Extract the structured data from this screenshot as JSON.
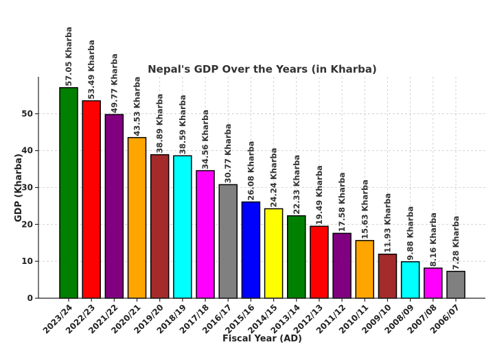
{
  "chart_data": {
    "type": "bar",
    "title": "Nepal's GDP Over the Years (in Kharba)",
    "xlabel": "Fiscal Year (AD)",
    "ylabel": "GDP (Kharba)",
    "ylim": [
      0,
      60
    ],
    "yticks": [
      0,
      10,
      20,
      30,
      40,
      50
    ],
    "grid": true,
    "categories": [
      "2023/24",
      "2022/23",
      "2021/22",
      "2020/21",
      "2019/20",
      "2018/19",
      "2017/18",
      "2016/17",
      "2015/16",
      "2014/15",
      "2013/14",
      "2012/13",
      "2011/12",
      "2010/11",
      "2009/10",
      "2008/09",
      "2007/08",
      "2006/07"
    ],
    "values": [
      57.05,
      53.49,
      49.77,
      43.53,
      38.89,
      38.59,
      34.56,
      30.77,
      26.08,
      24.24,
      22.33,
      19.49,
      17.58,
      15.63,
      11.93,
      9.88,
      8.16,
      7.28
    ],
    "data_labels": [
      "57.05 Kharba",
      "53.49 Kharba",
      "49.77 Kharba",
      "43.53 Kharba",
      "38.89 Kharba",
      "38.59 Kharba",
      "34.56 Kharba",
      "30.77 Kharba",
      "26.08 Kharba",
      "24.24 Kharba",
      "22.33 Kharba",
      "19.49 Kharba",
      "17.58 Kharba",
      "15.63 Kharba",
      "11.93 Kharba",
      "9.88 Kharba",
      "8.16 Kharba",
      "7.28 Kharba"
    ],
    "colors": [
      "#008000",
      "#ff0000",
      "#800080",
      "#ffa500",
      "#a52a2a",
      "#00ffff",
      "#ff00ff",
      "#808080",
      "#0000ff",
      "#ffff00",
      "#008000",
      "#ff0000",
      "#800080",
      "#ffa500",
      "#a52a2a",
      "#00ffff",
      "#ff00ff",
      "#808080"
    ]
  }
}
